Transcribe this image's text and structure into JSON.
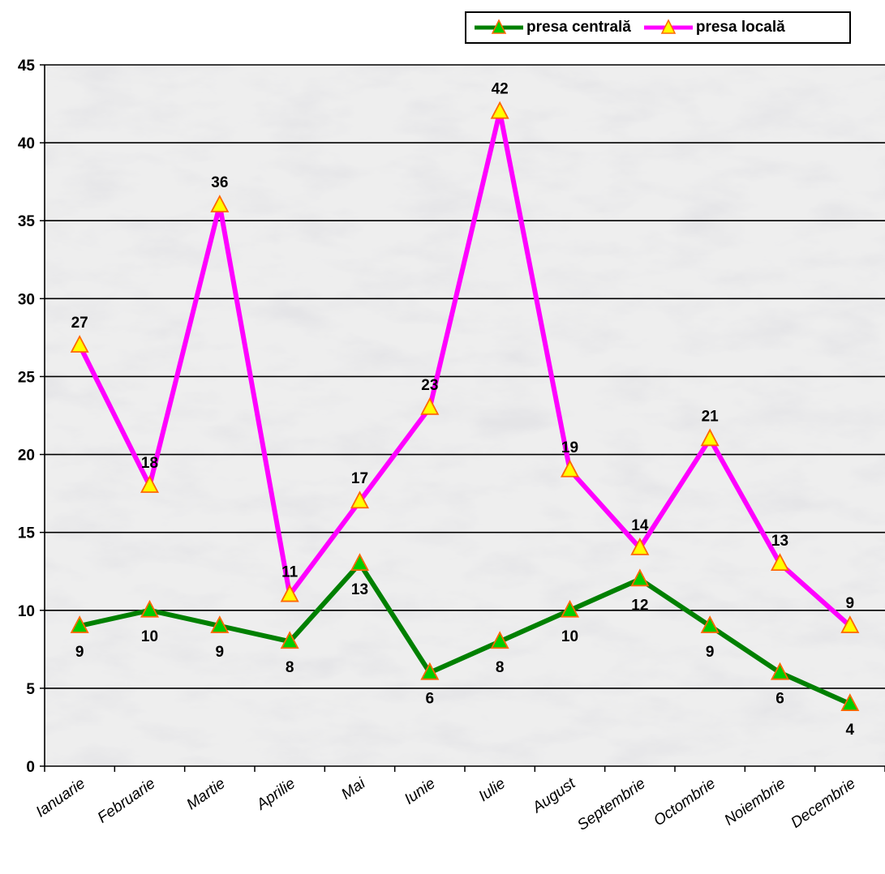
{
  "chart_data": {
    "type": "line",
    "categories": [
      "Ianuarie",
      "Februarie",
      "Martie",
      "Aprilie",
      "Mai",
      "Iunie",
      "Iulie",
      "August",
      "Septembrie",
      "Octombrie",
      "Noiembrie",
      "Decembrie"
    ],
    "series": [
      {
        "name": "presa centrală",
        "color": "#008000",
        "marker_color": "#00cc00",
        "values": [
          9,
          10,
          9,
          8,
          13,
          6,
          8,
          10,
          12,
          9,
          6,
          4
        ]
      },
      {
        "name": "presa locală",
        "color": "#ff00ff",
        "marker_color": "#ffff00",
        "values": [
          27,
          18,
          36,
          11,
          17,
          23,
          42,
          19,
          14,
          21,
          13,
          9
        ]
      }
    ],
    "ylim": [
      0,
      45
    ],
    "yticks": [
      0,
      5,
      10,
      15,
      20,
      25,
      30,
      35,
      40,
      45
    ],
    "xlabel": "",
    "ylabel": "",
    "grid": true,
    "legend_position": "top-right",
    "background": "marble texture"
  }
}
